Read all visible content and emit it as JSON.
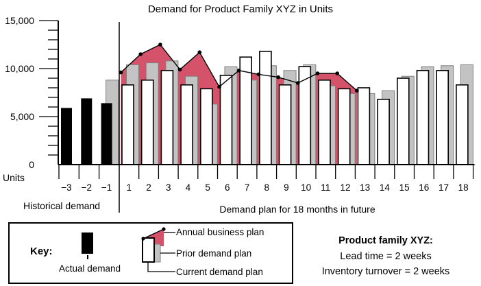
{
  "title": "Demand for Product Family XYZ in Units",
  "y_axis": {
    "label": "Units",
    "tick_labels": [
      "15,000",
      "10,000",
      "5,000",
      "0"
    ],
    "tick_values": [
      15000,
      10000,
      5000,
      0
    ],
    "minor_step": 1000,
    "max": 15000
  },
  "x_axis": {
    "historical_labels": [
      "−3",
      "−2",
      "−1"
    ],
    "future_labels": [
      "1",
      "2",
      "3",
      "4",
      "5",
      "6",
      "7",
      "8",
      "9",
      "10",
      "11",
      "12",
      "13",
      "14",
      "15",
      "16",
      "17",
      "18"
    ],
    "historical_caption": "Historical demand",
    "future_caption": "Demand plan for 18 months in future"
  },
  "chart_data": {
    "type": "bar+line",
    "title": "Demand for Product Family XYZ in Units",
    "ylabel": "Units",
    "ylim": [
      0,
      15000
    ],
    "grid": false,
    "historical": {
      "months": [
        -3,
        -2,
        -1
      ],
      "actual_demand": [
        5900,
        6900,
        6400
      ],
      "prior_demand_plan": [
        null,
        null,
        8800
      ]
    },
    "future": {
      "months": [
        1,
        2,
        3,
        4,
        5,
        6,
        7,
        8,
        9,
        10,
        11,
        12,
        13,
        14,
        15,
        16,
        17,
        18
      ],
      "current_demand_plan": [
        8300,
        8800,
        9800,
        8300,
        7900,
        9300,
        11200,
        11800,
        8300,
        10200,
        8800,
        7900,
        8000,
        6800,
        9000,
        9800,
        9800,
        8300
      ],
      "prior_demand_plan": [
        10400,
        10600,
        10800,
        9200,
        6300,
        10200,
        8800,
        10300,
        9800,
        10400,
        8200,
        7400,
        7400,
        7700,
        9200,
        10200,
        10300,
        10400
      ]
    },
    "annual_business_plan": {
      "months": [
        1,
        2,
        3,
        4,
        5,
        6,
        7,
        8,
        9,
        10,
        11,
        12,
        13
      ],
      "values": [
        9600,
        11500,
        12500,
        9900,
        11700,
        8100,
        9800,
        9400,
        9100,
        8500,
        9500,
        9500,
        7700
      ],
      "note_last_point_is_plan_end": true
    }
  },
  "key": {
    "heading": "Key:",
    "actual_demand_label": "Actual demand",
    "annual_business_plan_label": "Annual business plan",
    "prior_demand_plan_label": "Prior demand plan",
    "current_demand_plan_label": "Current demand plan"
  },
  "info": {
    "heading": "Product family XYZ:",
    "lines": [
      "Lead time = 2 weeks",
      "Inventory turnover = 2 weeks"
    ]
  },
  "colors": {
    "annual_business_plan_red": "#d4526a",
    "prior_plan_gray": "#c3c3c3",
    "prior_plan_gray_border": "#7f7f7f",
    "actual_demand_black": "#000000",
    "current_plan_white": "#ffffff",
    "line_black": "#000000"
  }
}
